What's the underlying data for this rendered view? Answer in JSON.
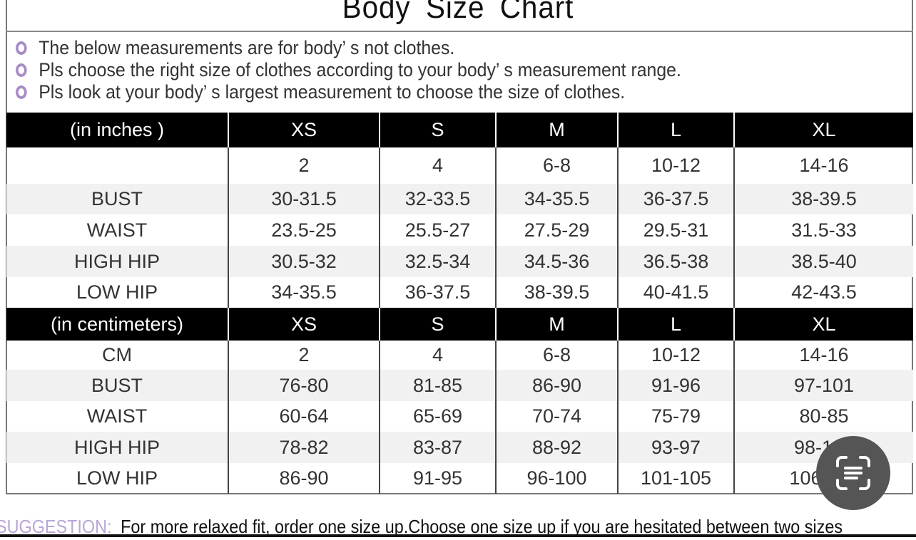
{
  "title": "Body Size Chart",
  "notes": [
    "The below measurements are for  body’ s not clothes.",
    "Pls choose the right size of clothes according to your body’ s  measurement range.",
    "Pls look  at your body’ s  largest measurement to choose the size of clothes."
  ],
  "inches": {
    "header": [
      "(in  inches )",
      "XS",
      "S",
      "M",
      "L",
      "XL"
    ],
    "rows": [
      [
        "",
        "2",
        "4",
        "6-8",
        "10-12",
        "14-16"
      ],
      [
        "BUST",
        "30-31.5",
        "32-33.5",
        "34-35.5",
        "36-37.5",
        "38-39.5"
      ],
      [
        "WAIST",
        "23.5-25",
        "25.5-27",
        "27.5-29",
        "29.5-31",
        "31.5-33"
      ],
      [
        "HIGH HIP",
        "30.5-32",
        "32.5-34",
        "34.5-36",
        "36.5-38",
        "38.5-40"
      ],
      [
        "LOW HIP",
        "34-35.5",
        "36-37.5",
        "38-39.5",
        "40-41.5",
        "42-43.5"
      ]
    ]
  },
  "cm": {
    "header": [
      "(in centimeters)",
      "XS",
      "S",
      "M",
      "L",
      "XL"
    ],
    "rows": [
      [
        "CM",
        "2",
        "4",
        "6-8",
        "10-12",
        "14-16"
      ],
      [
        "BUST",
        "76-80",
        "81-85",
        "86-90",
        "91-96",
        "97-101"
      ],
      [
        "WAIST",
        "60-64",
        "65-69",
        "70-74",
        "75-79",
        "80-85"
      ],
      [
        "HIGH HIP",
        "78-82",
        "83-87",
        "88-92",
        "93-97",
        "98-102"
      ],
      [
        "LOW HIP",
        "86-90",
        "91-95",
        "96-100",
        "101-105",
        "106-110"
      ]
    ]
  },
  "suggestion": {
    "label": "SUGGESTION:",
    "text": "For more relaxed fit, order one size up.Choose one size up if you are hesitated between two sizes"
  },
  "overlay": {
    "icon": "text-scan-icon"
  }
}
